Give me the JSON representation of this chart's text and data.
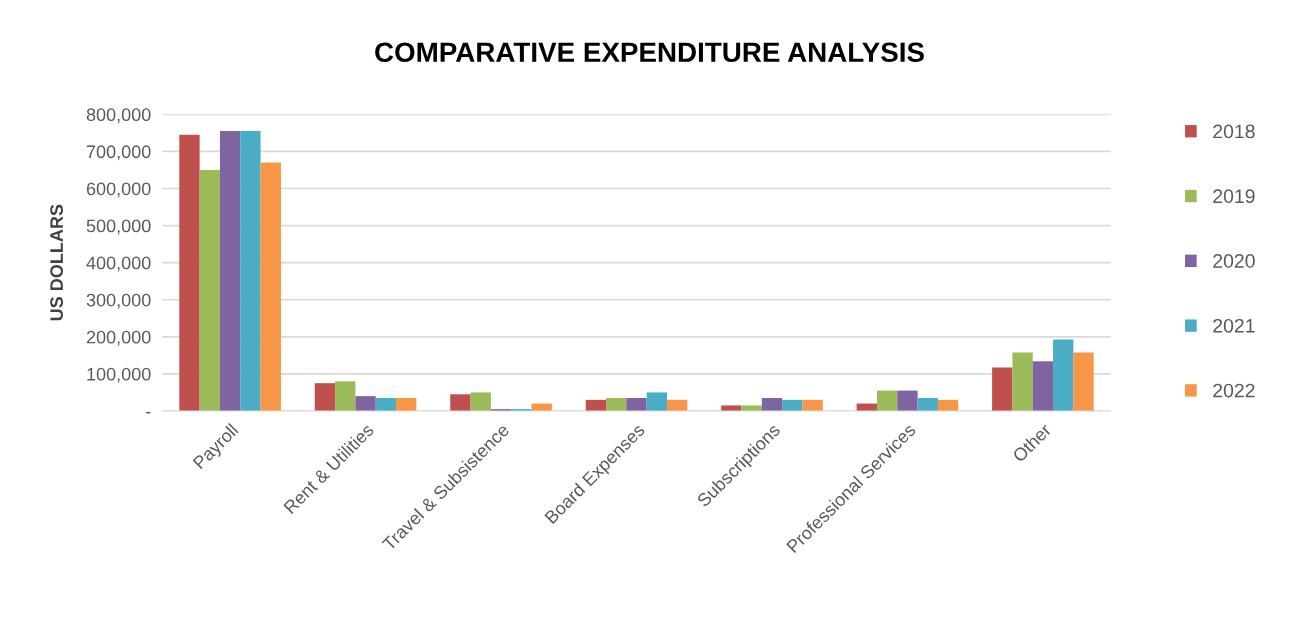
{
  "chart_data": {
    "type": "bar",
    "title": "COMPARATIVE EXPENDITURE ANALYSIS",
    "ylabel": "US DOLLARS",
    "categories": [
      "Payroll",
      "Rent & Utilities",
      "Travel & Subsistence",
      "Board Expenses",
      "Subscriptions",
      "Professional Services",
      "Other"
    ],
    "series": [
      {
        "name": "2018",
        "color": "#c0504d",
        "values": [
          745000,
          75000,
          45000,
          30000,
          15000,
          20000,
          117000
        ]
      },
      {
        "name": "2019",
        "color": "#9bbb59",
        "values": [
          650000,
          80000,
          50000,
          35000,
          15000,
          55000,
          158000
        ]
      },
      {
        "name": "2020",
        "color": "#8064a2",
        "values": [
          755000,
          40000,
          5000,
          35000,
          35000,
          55000,
          134000
        ]
      },
      {
        "name": "2021",
        "color": "#4bacc6",
        "values": [
          755000,
          35000,
          5000,
          50000,
          30000,
          35000,
          193000
        ]
      },
      {
        "name": "2022",
        "color": "#f79646",
        "values": [
          670000,
          35000,
          20000,
          30000,
          30000,
          30000,
          158000
        ]
      }
    ],
    "ylim": [
      0,
      800000
    ],
    "yticks": [
      {
        "value": 0,
        "label": "-"
      },
      {
        "value": 100000,
        "label": "100,000"
      },
      {
        "value": 200000,
        "label": "200,000"
      },
      {
        "value": 300000,
        "label": "300,000"
      },
      {
        "value": 400000,
        "label": "400,000"
      },
      {
        "value": 500000,
        "label": "500,000"
      },
      {
        "value": 600000,
        "label": "600,000"
      },
      {
        "value": 700000,
        "label": "700,000"
      },
      {
        "value": 800000,
        "label": "800,000"
      }
    ],
    "grid": "y",
    "legend": "right"
  }
}
